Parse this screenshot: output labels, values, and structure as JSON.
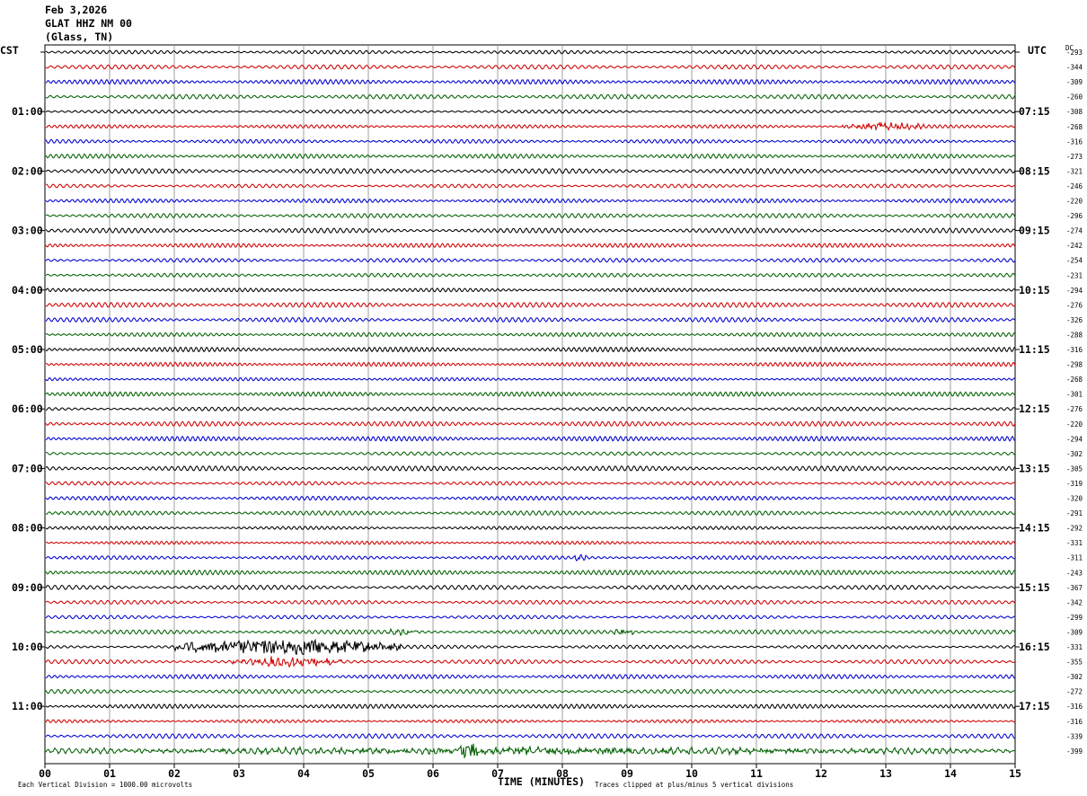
{
  "header": {
    "date": "Feb 3,2026",
    "station": "GLAT HHZ NM 00",
    "location": "(Glass, TN)"
  },
  "left_zone_label": "CST",
  "right_zone_label": "UTC",
  "dc_label": "DC",
  "footer": {
    "scale_note": "Each Vertical Division = 1000.00 microvolts",
    "xlabel": "TIME (MINUTES)",
    "clip_note": "Traces clipped at plus/minus 5 vertical divisions"
  },
  "chart_data": {
    "type": "line",
    "title": "GLAT HHZ NM 00",
    "xlabel": "TIME (MINUTES)",
    "xlim": [
      0,
      15
    ],
    "x_ticks": [
      "00",
      "01",
      "02",
      "03",
      "04",
      "05",
      "06",
      "07",
      "08",
      "09",
      "10",
      "11",
      "12",
      "13",
      "14",
      "15"
    ],
    "grid": true,
    "trace_colors": [
      "#000000",
      "#d00000",
      "#0000d0",
      "#006000"
    ],
    "left_hour_labels": [
      "01:00",
      "02:00",
      "03:00",
      "04:00",
      "05:00",
      "06:00",
      "07:00",
      "08:00",
      "09:00",
      "10:00",
      "11:00"
    ],
    "right_hour_labels": [
      "07:15",
      "08:15",
      "09:15",
      "10:15",
      "11:15",
      "12:15",
      "13:15",
      "14:15",
      "15:15",
      "16:15",
      "17:15"
    ],
    "dc_offsets": [
      "-293",
      "-344",
      "-309",
      "-260",
      "-308",
      "-268",
      "-316",
      "-273",
      "-321",
      "-246",
      "-220",
      "-296",
      "-274",
      "-242",
      "-254",
      "-231",
      "-294",
      "-276",
      "-326",
      "-288",
      "-316",
      "-298",
      "-268",
      "-301",
      "-276",
      "-220",
      "-294",
      "-302",
      "-305",
      "-319",
      "-320",
      "-291",
      "-292",
      "-331",
      "-311",
      "-243",
      "-367",
      "-342",
      "-299",
      "-309",
      "-331",
      "-355",
      "-302",
      "-272",
      "-316",
      "-316",
      "-339",
      "-399"
    ],
    "events": [
      {
        "trace": 5,
        "start_min": 12.3,
        "end_min": 13.6,
        "amplitude": 4
      },
      {
        "trace": 34,
        "start_min": 8.1,
        "end_min": 8.4,
        "amplitude": 3
      },
      {
        "trace": 39,
        "start_min": 5.3,
        "end_min": 5.8,
        "amplitude": 3
      },
      {
        "trace": 39,
        "start_min": 8.8,
        "end_min": 9.1,
        "amplitude": 4
      },
      {
        "trace": 40,
        "start_min": 2.0,
        "end_min": 5.5,
        "amplitude": 9
      },
      {
        "trace": 41,
        "start_min": 2.9,
        "end_min": 4.6,
        "amplitude": 5
      },
      {
        "trace": 47,
        "start_min": 0.0,
        "end_min": 15.0,
        "amplitude": 3
      },
      {
        "trace": 47,
        "start_min": 6.4,
        "end_min": 6.8,
        "amplitude": 10
      }
    ]
  }
}
